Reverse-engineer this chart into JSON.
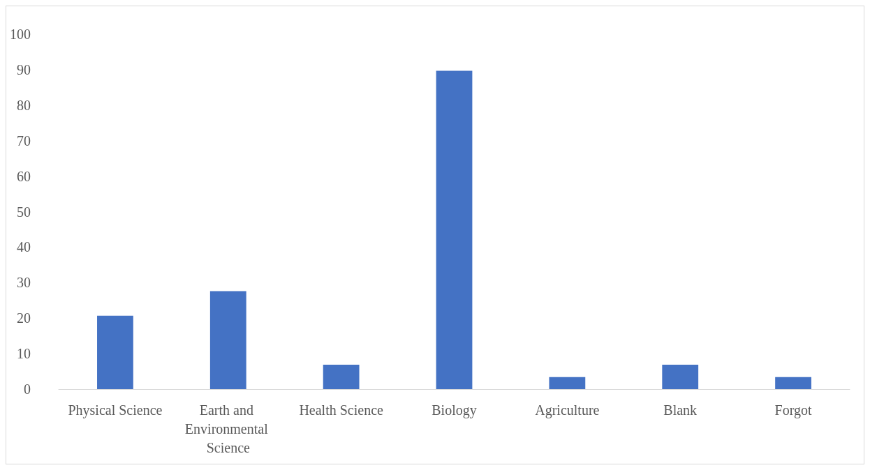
{
  "chart_data": {
    "type": "bar",
    "categories": [
      "Physical Science",
      "Earth and Environmental Science",
      "Health Science",
      "Biology",
      "Agriculture",
      "Blank",
      "Forgot"
    ],
    "values": [
      20.7,
      27.6,
      6.9,
      89.7,
      3.4,
      6.9,
      3.4
    ],
    "color": "#4472c4",
    "ylim": [
      0,
      100
    ],
    "yticks": [
      0,
      10,
      20,
      30,
      40,
      50,
      60,
      70,
      80,
      90,
      100
    ],
    "grid": false
  }
}
